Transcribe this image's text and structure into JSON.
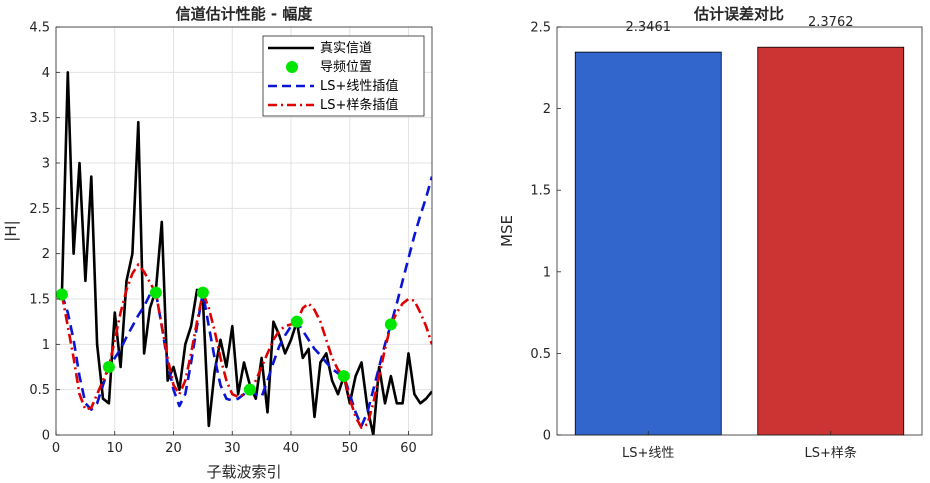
{
  "chart_data": [
    {
      "type": "line",
      "title": "信道估计性能 - 幅度",
      "xlabel": "子载波索引",
      "ylabel": "|H|",
      "xlim": [
        0,
        64
      ],
      "ylim": [
        0,
        4.5
      ],
      "xticks": [
        "0",
        "10",
        "20",
        "30",
        "40",
        "50",
        "60"
      ],
      "yticks": [
        "0",
        "0.5",
        "1",
        "1.5",
        "2",
        "2.5",
        "3",
        "3.5",
        "4",
        "4.5"
      ],
      "grid": true,
      "legend_position": "top-right",
      "series": [
        {
          "name": "真实信道",
          "style": "solid",
          "color": "#000000",
          "x": [
            1,
            2,
            3,
            4,
            5,
            6,
            7,
            8,
            9,
            10,
            11,
            12,
            13,
            14,
            15,
            16,
            17,
            18,
            19,
            20,
            21,
            22,
            23,
            24,
            25,
            26,
            27,
            28,
            29,
            30,
            31,
            32,
            33,
            34,
            35,
            36,
            37,
            38,
            39,
            40,
            41,
            42,
            43,
            44,
            45,
            46,
            47,
            48,
            49,
            50,
            51,
            52,
            53,
            54,
            55,
            56,
            57,
            58,
            59,
            60,
            61,
            62,
            63,
            64
          ],
          "y": [
            1.55,
            4.0,
            2.0,
            3.0,
            1.7,
            2.85,
            1.0,
            0.4,
            0.35,
            1.35,
            0.75,
            1.7,
            2.0,
            3.45,
            0.9,
            1.4,
            1.6,
            2.35,
            0.6,
            0.75,
            0.5,
            1.0,
            1.2,
            1.6,
            1.5,
            0.1,
            0.7,
            1.05,
            0.75,
            1.2,
            0.45,
            0.8,
            0.55,
            0.4,
            0.85,
            0.25,
            1.25,
            1.1,
            0.9,
            1.05,
            1.25,
            0.85,
            0.95,
            0.2,
            0.8,
            0.9,
            0.6,
            0.45,
            0.65,
            0.35,
            0.65,
            0.8,
            0.3,
            0.0,
            0.75,
            0.35,
            0.65,
            0.35,
            0.35,
            0.9,
            0.45,
            0.35,
            0.4,
            0.48
          ]
        },
        {
          "name": "导频位置",
          "style": "marker",
          "color": "#00e600",
          "x": [
            1,
            9,
            17,
            25,
            33,
            41,
            49,
            57
          ],
          "y": [
            1.55,
            0.75,
            1.57,
            1.57,
            0.5,
            1.25,
            0.65,
            1.22
          ]
        },
        {
          "name": "LS+线性插值",
          "style": "dashed",
          "color": "#0a14d6",
          "x": [
            1,
            2,
            3,
            4,
            5,
            6,
            7,
            8,
            9,
            10,
            11,
            12,
            13,
            14,
            15,
            16,
            17,
            18,
            19,
            20,
            21,
            22,
            23,
            24,
            25,
            26,
            27,
            28,
            29,
            30,
            31,
            32,
            33,
            34,
            35,
            36,
            37,
            38,
            39,
            40,
            41,
            42,
            43,
            44,
            45,
            46,
            47,
            48,
            49,
            50,
            51,
            52,
            53,
            54,
            55,
            56,
            57,
            58,
            59,
            60,
            61,
            62,
            63,
            64
          ],
          "y": [
            1.55,
            1.35,
            1.05,
            0.65,
            0.35,
            0.28,
            0.35,
            0.55,
            0.75,
            0.85,
            0.95,
            1.08,
            1.2,
            1.32,
            1.42,
            1.55,
            1.57,
            1.2,
            0.8,
            0.5,
            0.32,
            0.45,
            0.8,
            1.2,
            1.57,
            1.2,
            0.85,
            0.55,
            0.4,
            0.38,
            0.4,
            0.45,
            0.5,
            0.45,
            0.42,
            0.6,
            0.8,
            0.98,
            1.1,
            1.2,
            1.25,
            1.15,
            1.05,
            0.95,
            0.88,
            0.8,
            0.73,
            0.68,
            0.65,
            0.45,
            0.25,
            0.1,
            0.25,
            0.5,
            0.75,
            1.0,
            1.22,
            1.45,
            1.7,
            1.95,
            2.2,
            2.42,
            2.62,
            2.85
          ]
        },
        {
          "name": "LS+样条插值",
          "style": "dashdot",
          "color": "#e00000",
          "x": [
            1,
            2,
            3,
            4,
            5,
            6,
            7,
            8,
            9,
            10,
            11,
            12,
            13,
            14,
            15,
            16,
            17,
            18,
            19,
            20,
            21,
            22,
            23,
            24,
            25,
            26,
            27,
            28,
            29,
            30,
            31,
            32,
            33,
            34,
            35,
            36,
            37,
            38,
            39,
            40,
            41,
            42,
            43,
            44,
            45,
            46,
            47,
            48,
            49,
            50,
            51,
            52,
            53,
            54,
            55,
            56,
            57,
            58,
            59,
            60,
            61,
            62,
            63,
            64
          ],
          "y": [
            1.55,
            1.2,
            0.85,
            0.45,
            0.28,
            0.3,
            0.45,
            0.6,
            0.75,
            1.05,
            1.35,
            1.6,
            1.78,
            1.88,
            1.8,
            1.68,
            1.57,
            1.2,
            0.85,
            0.55,
            0.45,
            0.6,
            0.9,
            1.25,
            1.57,
            1.4,
            1.15,
            0.85,
            0.6,
            0.45,
            0.42,
            0.45,
            0.5,
            0.6,
            0.75,
            0.9,
            1.05,
            1.15,
            1.2,
            1.22,
            1.25,
            1.4,
            1.45,
            1.38,
            1.25,
            1.05,
            0.85,
            0.72,
            0.65,
            0.4,
            0.2,
            0.08,
            0.12,
            0.35,
            0.65,
            0.95,
            1.22,
            1.35,
            1.45,
            1.5,
            1.48,
            1.35,
            1.2,
            1.0
          ]
        }
      ]
    },
    {
      "type": "bar",
      "title": "估计误差对比",
      "xlabel": "",
      "ylabel": "MSE",
      "categories": [
        "LS+线性",
        "LS+样条"
      ],
      "values": [
        2.3461,
        2.3762
      ],
      "value_labels": [
        "2.3461",
        "2.3762"
      ],
      "colors": [
        "#3366cc",
        "#cc3333"
      ],
      "ylim": [
        0,
        2.5
      ],
      "xlim": [
        0.5,
        2.5
      ],
      "yticks": [
        "0",
        "0.5",
        "1",
        "1.5",
        "2",
        "2.5"
      ],
      "grid": false
    }
  ]
}
